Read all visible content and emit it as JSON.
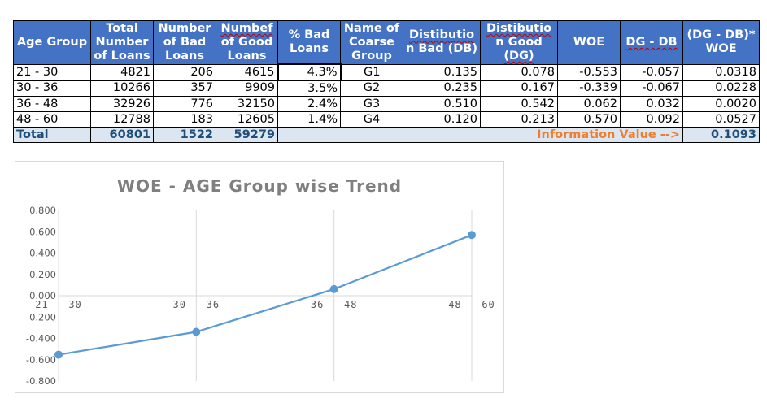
{
  "table": {
    "headers": [
      {
        "l1": "Age Group",
        "l2": "",
        "l3": ""
      },
      {
        "l1": "Total",
        "l2": "Number",
        "l3": "of Loans"
      },
      {
        "l1": "Number",
        "l2": "of Bad",
        "l3": "Loans"
      },
      {
        "l1": "Numbef",
        "l2": "of Good",
        "l3": "Loans"
      },
      {
        "l1": "% Bad",
        "l2": "Loans",
        "l3": ""
      },
      {
        "l1": "Name of",
        "l2": "Coarse",
        "l3": "Group"
      },
      {
        "l1": "Distibutio",
        "l2": "n Bad (DB)",
        "l3": ""
      },
      {
        "l1": "Distibutio",
        "l2": "n Good",
        "l3": "(DG)"
      },
      {
        "l1": "WOE",
        "l2": "",
        "l3": ""
      },
      {
        "l1": "DG - DB",
        "l2": "",
        "l3": ""
      },
      {
        "l1": "(DG - DB)*",
        "l2": "WOE",
        "l3": ""
      }
    ],
    "rows": [
      [
        "21 - 30",
        "4821",
        "206",
        "4615",
        "4.3%",
        "G1",
        "0.135",
        "0.078",
        "-0.553",
        "-0.057",
        "0.0318"
      ],
      [
        "30 - 36",
        "10266",
        "357",
        "9909",
        "3.5%",
        "G2",
        "0.235",
        "0.167",
        "-0.339",
        "-0.067",
        "0.0228"
      ],
      [
        "36 - 48",
        "32926",
        "776",
        "32150",
        "2.4%",
        "G3",
        "0.510",
        "0.542",
        "0.062",
        "0.032",
        "0.0020"
      ],
      [
        "48 - 60",
        "12788",
        "183",
        "12605",
        "1.4%",
        "G4",
        "0.120",
        "0.213",
        "0.570",
        "0.092",
        "0.0527"
      ]
    ],
    "total": {
      "label": "Total",
      "total_loans": "60801",
      "bad_loans": "1522",
      "good_loans": "59279",
      "iv_label": "Information Value -->",
      "iv_value": "0.1093"
    }
  },
  "chart_data": {
    "type": "line",
    "title": "WOE - AGE Group wise Trend",
    "categories": [
      "21 - 30",
      "30 - 36",
      "36 - 48",
      "48 - 60"
    ],
    "values": [
      -0.553,
      -0.339,
      0.062,
      0.57
    ],
    "ylim": [
      -0.8,
      0.8
    ],
    "yticks": [
      "0.800",
      "0.600",
      "0.400",
      "0.200",
      "0.000",
      "-0.200",
      "-0.400",
      "-0.600",
      "-0.800"
    ],
    "xlabel": "",
    "ylabel": "",
    "grid": "vertical",
    "legend": "none",
    "color": "#5b9bd5"
  }
}
